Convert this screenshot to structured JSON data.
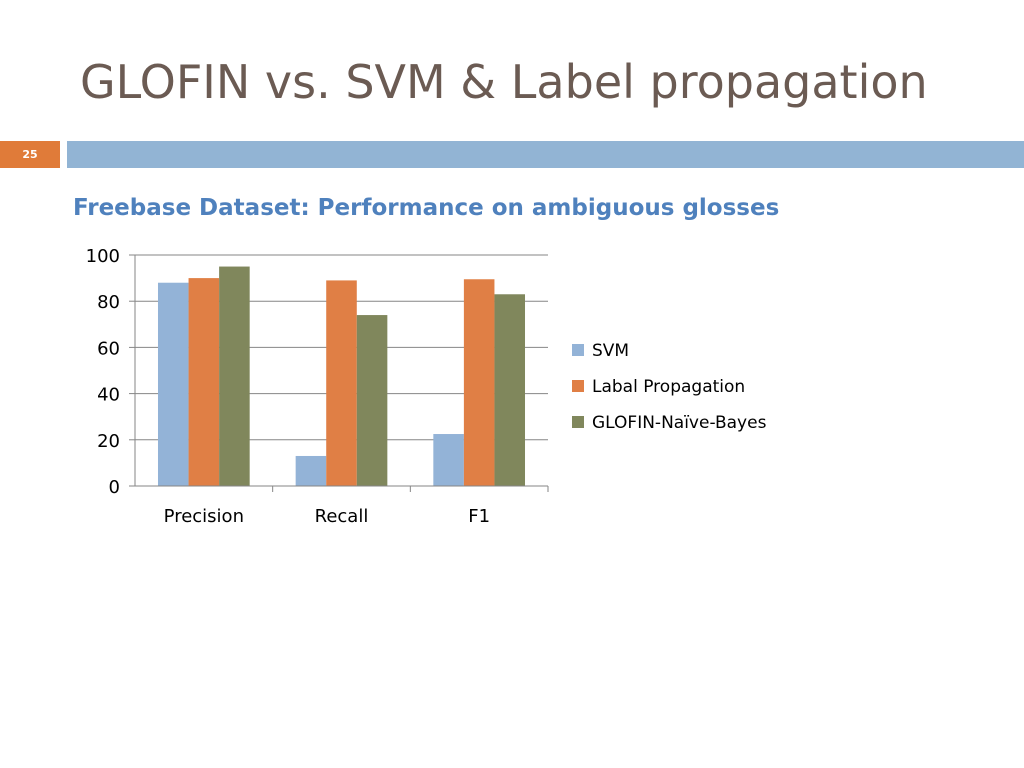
{
  "slide": {
    "title": "GLOFIN vs. SVM & Label propagation",
    "number": "25",
    "accent_color": "#e07b39",
    "bar_color": "#92b4d4",
    "title_color": "#6b5b53",
    "subtitle_color": "#4f81bd"
  },
  "chart_data": {
    "type": "bar",
    "title": "Freebase Dataset: Performance on ambiguous glosses",
    "xlabel": "",
    "ylabel": "",
    "categories": [
      "Precision",
      "Recall",
      "F1"
    ],
    "series": [
      {
        "name": "SVM",
        "color": "#93b3d7",
        "values": [
          88,
          13,
          22.5
        ]
      },
      {
        "name": "Labal Propagation",
        "color": "#e07f45",
        "values": [
          90,
          89,
          89.5
        ]
      },
      {
        "name": "GLOFIN-Naïve-Bayes",
        "color": "#80875c",
        "values": [
          95,
          74,
          83
        ]
      }
    ],
    "ylim": [
      0,
      100
    ],
    "yticks": [
      0,
      20,
      40,
      60,
      80,
      100
    ],
    "grid": true,
    "legend_position": "right"
  }
}
